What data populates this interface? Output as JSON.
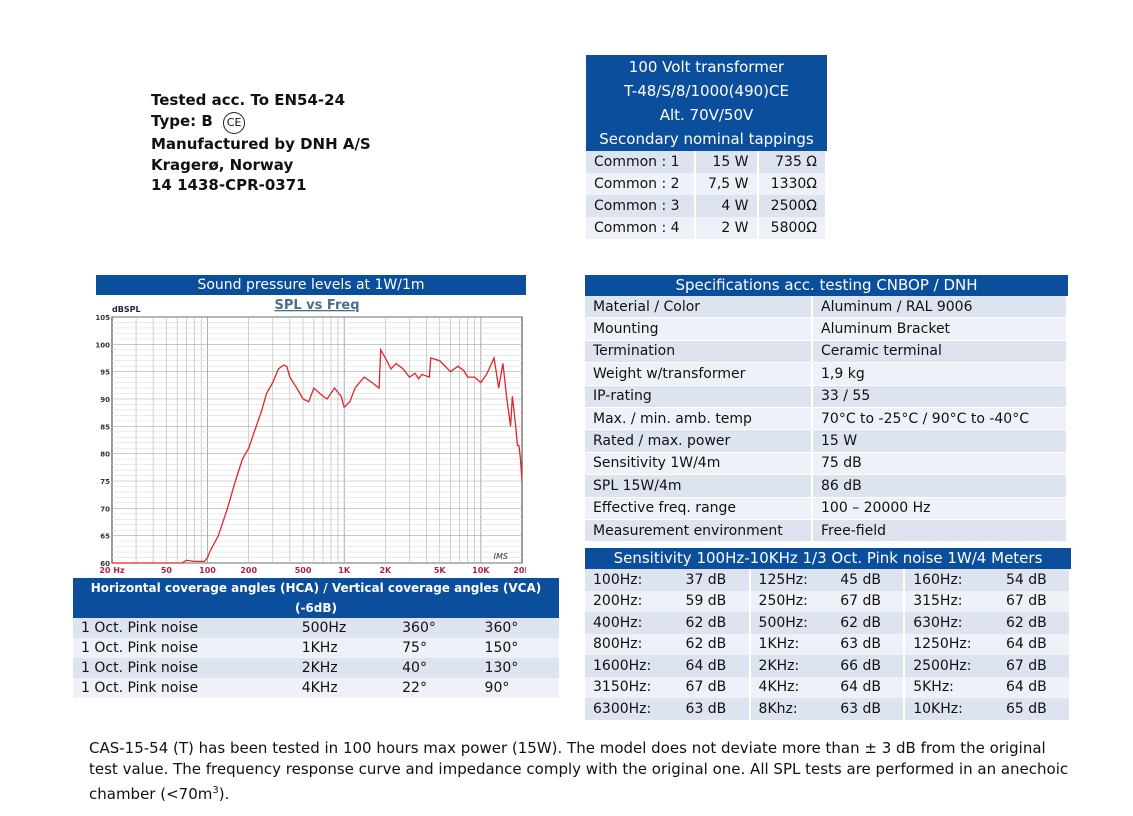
{
  "info": {
    "lines": [
      "Tested acc. To EN54-24",
      "Type: B",
      "Manufactured by DNH A/S",
      "Kragerø, Norway",
      "14 1438-CPR-0371"
    ],
    "ce_mark": "CE"
  },
  "transformer": {
    "title_lines": [
      "100 Volt transformer",
      "T-48/S/8/1000(490)CE",
      "Alt. 70V/50V",
      "Secondary nominal tappings"
    ],
    "rows": [
      [
        "Common : 1",
        "15 W",
        "735 Ω"
      ],
      [
        "Common : 2",
        "7,5 W",
        "1330Ω"
      ],
      [
        "Common : 3",
        "4 W",
        "2500Ω"
      ],
      [
        "Common : 4",
        "2 W",
        "5800Ω"
      ]
    ]
  },
  "spl_chart": {
    "header": "Sound pressure levels at 1W/1m"
  },
  "chart_data": {
    "type": "line",
    "title": "SPL vs Freq",
    "ylabel": "dBSPL",
    "xscale": "log",
    "xlim": [
      20,
      20000
    ],
    "ylim": [
      60,
      105
    ],
    "grid": true,
    "xticks": [
      "20  Hz",
      "50",
      "100",
      "200",
      "500",
      "1K",
      "2K",
      "5K",
      "10K",
      "20K"
    ],
    "xtick_values": [
      20,
      50,
      100,
      200,
      500,
      1000,
      2000,
      5000,
      10000,
      20000
    ],
    "yticks": [
      "105",
      "100",
      "95",
      "90",
      "85",
      "80",
      "75",
      "70",
      "65",
      "60"
    ],
    "watermark": "IMS",
    "line_color": "#e0262b",
    "x": [
      20,
      65,
      70,
      80,
      95,
      100,
      105,
      120,
      140,
      160,
      180,
      200,
      220,
      250,
      270,
      300,
      330,
      360,
      380,
      400,
      450,
      500,
      550,
      600,
      700,
      750,
      850,
      950,
      1000,
      1100,
      1200,
      1400,
      1600,
      1800,
      1850,
      2000,
      2200,
      2400,
      2700,
      3000,
      3300,
      3500,
      3700,
      4200,
      4300,
      5000,
      6000,
      6800,
      7500,
      8000,
      9000,
      10000,
      11000,
      12500,
      13500,
      14500,
      15500,
      16500,
      17000,
      18000,
      18500,
      19000,
      19500,
      20000
    ],
    "y": [
      60,
      60,
      60.5,
      60.3,
      60.3,
      61,
      62.3,
      65,
      70,
      75,
      79,
      81,
      84,
      88,
      91,
      93,
      95.5,
      96.2,
      96,
      94,
      92,
      90,
      89.5,
      92,
      90.5,
      90,
      92,
      90.5,
      88.5,
      89.5,
      92,
      94,
      93,
      92,
      99,
      97.5,
      95.5,
      96.5,
      95.5,
      94,
      94.7,
      93.7,
      94.5,
      94,
      97.5,
      97,
      95,
      96,
      95.2,
      94,
      94,
      93,
      94.5,
      97.5,
      92,
      96.5,
      90,
      85,
      90.5,
      85,
      81.5,
      81.5,
      79,
      75
    ]
  },
  "coverage": {
    "header": "Horizontal coverage angles (HCA) / Vertical coverage angles (VCA) (-6dB)",
    "rows": [
      [
        "1 Oct. Pink noise",
        "500Hz",
        "360°",
        "360°"
      ],
      [
        "1 Oct. Pink noise",
        "1KHz",
        "75°",
        "150°"
      ],
      [
        "1 Oct. Pink noise",
        "2KHz",
        "40°",
        "130°"
      ],
      [
        "1 Oct. Pink noise",
        "4KHz",
        "22°",
        "90°"
      ]
    ]
  },
  "specs": {
    "header": "Specifications acc. testing  CNBOP  /  DNH",
    "rows": [
      [
        "Material / Color",
        "Aluminum / RAL 9006"
      ],
      [
        "Mounting",
        "Aluminum Bracket"
      ],
      [
        "Termination",
        "Ceramic terminal"
      ],
      [
        "Weight w/transformer",
        "1,9 kg"
      ],
      [
        "IP-rating",
        "33 / 55"
      ],
      [
        "Max. / min. amb. temp",
        "70°C to -25°C / 90°C to -40°C"
      ],
      [
        "Rated / max. power",
        "15 W"
      ],
      [
        "Sensitivity 1W/4m",
        "75 dB"
      ],
      [
        "SPL 15W/4m",
        "86 dB"
      ],
      [
        "Effective freq. range",
        "100 – 20000 Hz"
      ],
      [
        "Measurement environment",
        "Free-field"
      ]
    ]
  },
  "sensitivity": {
    "header": "Sensitivity 100Hz-10KHz 1/3 Oct. Pink noise 1W/4 Meters",
    "rows": [
      [
        [
          "100Hz:",
          "37 dB"
        ],
        [
          "125Hz:",
          "45 dB"
        ],
        [
          "160Hz:",
          "54 dB"
        ]
      ],
      [
        [
          "200Hz:",
          "59 dB"
        ],
        [
          "250Hz:",
          "67 dB"
        ],
        [
          "315Hz:",
          "67 dB"
        ]
      ],
      [
        [
          "400Hz:",
          "62 dB"
        ],
        [
          "500Hz:",
          "62 dB"
        ],
        [
          "630Hz:",
          "62 dB"
        ]
      ],
      [
        [
          "800Hz:",
          "62 dB"
        ],
        [
          "1KHz:",
          "63 dB"
        ],
        [
          "1250Hz:",
          "64 dB"
        ]
      ],
      [
        [
          "1600Hz:",
          "64 dB"
        ],
        [
          "2KHz:",
          "66 dB"
        ],
        [
          "2500Hz:",
          "67 dB"
        ]
      ],
      [
        [
          "3150Hz:",
          "67 dB"
        ],
        [
          "4KHz:",
          "64 dB"
        ],
        [
          "5KHz:",
          "64 dB"
        ]
      ],
      [
        [
          "6300Hz:",
          "63 dB"
        ],
        [
          "8Khz:",
          "63 dB"
        ],
        [
          "10KHz:",
          "65 dB"
        ]
      ]
    ]
  },
  "footer": {
    "text": "CAS-15-54 (T) has been tested in 100 hours max power (15W). The model does not deviate more than ± 3 dB from the original test value. The frequency response curve and impedance comply with the original one. All SPL tests are performed in an anechoic chamber (<70m",
    "sup": "3",
    "end": ")."
  }
}
